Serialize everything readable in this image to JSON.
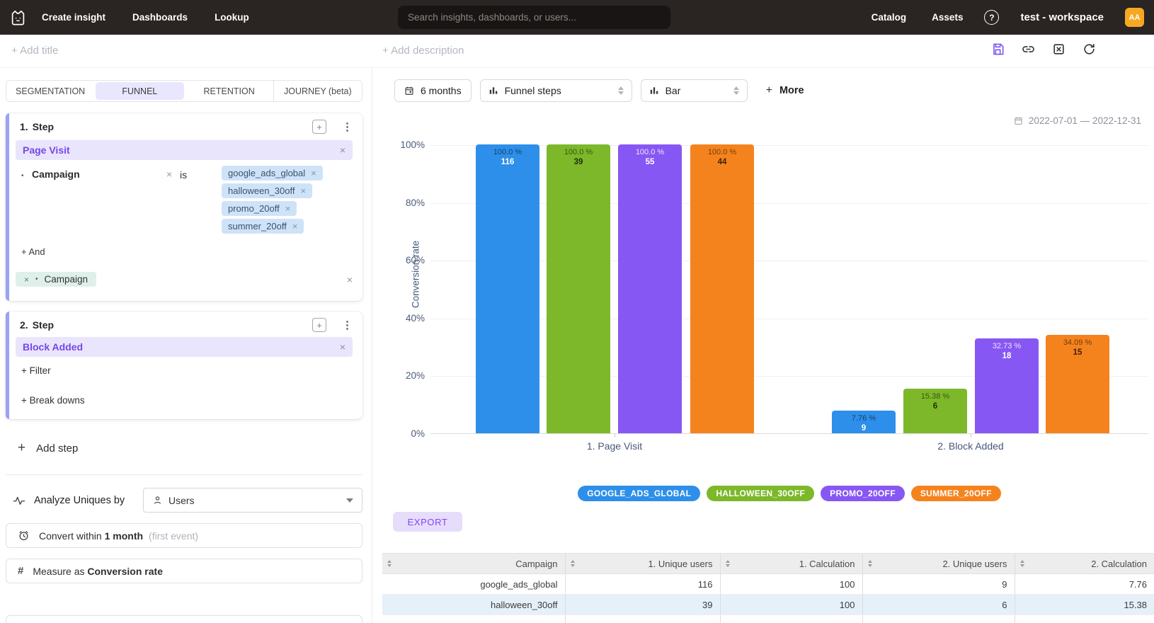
{
  "navbar": {
    "menu": [
      "Create insight",
      "Dashboards",
      "Lookup"
    ],
    "search_placeholder": "Search insights, dashboards, or users...",
    "right_menu": [
      "Catalog",
      "Assets"
    ],
    "help_label": "?",
    "workspace_name": "test - workspace",
    "avatar_initials": "AA"
  },
  "toolbar": {
    "add_title_placeholder": "+ Add title",
    "add_description_placeholder": "+ Add description"
  },
  "tabs": {
    "labels": [
      "SEGMENTATION",
      "FUNNEL",
      "RETENTION",
      "JOURNEY (beta)"
    ],
    "active": "FUNNEL"
  },
  "funnel": {
    "step1": {
      "number": "1.",
      "title": "Step",
      "event_name": "Page Visit",
      "filter": {
        "property": "Campaign",
        "operator": "is",
        "values": [
          "google_ads_global",
          "halloween_30off",
          "promo_20off",
          "summer_20off"
        ]
      },
      "and_label": "+ And",
      "second_filter_property": "Campaign"
    },
    "step2": {
      "number": "2.",
      "title": "Step",
      "event_name": "Block Added",
      "add_filter_label": "+ Filter",
      "add_breakdown_label": "+ Break downs"
    },
    "add_step_label": "Add step",
    "analyze_label": "Analyze Uniques by",
    "analyze_value": "Users",
    "convert_prefix": "Convert within",
    "convert_value": "1 month",
    "convert_hint": "(first event)",
    "measure_prefix": "Measure as",
    "measure_value": "Conversion rate"
  },
  "chart_controls": {
    "range_button": "6 months",
    "display_select": "Funnel steps",
    "type_select": "Bar",
    "more_button": "More",
    "date_range": "2022-07-01 — 2022-12-31",
    "export_button": "EXPORT"
  },
  "chart_data": {
    "type": "bar",
    "ylabel": "Conversion rate",
    "ylim": [
      0,
      100
    ],
    "ytick_labels": [
      "0%",
      "20%",
      "40%",
      "60%",
      "80%",
      "100%"
    ],
    "grid": true,
    "legend_position": "bottom",
    "categories": [
      "1. Page Visit",
      "2. Block Added"
    ],
    "series": [
      {
        "name": "GOOGLE_ADS_GLOBAL",
        "color": "#2d8fe9",
        "values": [
          100.0,
          7.76
        ],
        "value_labels": [
          "100.0 %",
          "7.76 %"
        ],
        "counts": [
          116,
          9
        ]
      },
      {
        "name": "HALLOWEEN_30OFF",
        "color": "#7cb82a",
        "values": [
          100.0,
          15.38
        ],
        "value_labels": [
          "100.0 %",
          "15.38 %"
        ],
        "counts": [
          39,
          6
        ]
      },
      {
        "name": "PROMO_20OFF",
        "color": "#8757f3",
        "values": [
          100.0,
          32.73
        ],
        "value_labels": [
          "100.0 %",
          "32.73 %"
        ],
        "counts": [
          55,
          18
        ]
      },
      {
        "name": "SUMMER_20OFF",
        "color": "#f5831d",
        "values": [
          100.0,
          34.09
        ],
        "value_labels": [
          "100.0 %",
          "34.09 %"
        ],
        "counts": [
          44,
          15
        ]
      }
    ]
  },
  "table": {
    "columns": [
      "Campaign",
      "1. Unique users",
      "1. Calculation",
      "2. Unique users",
      "2. Calculation"
    ],
    "rows": [
      [
        "google_ads_global",
        "116",
        "100",
        "9",
        "7.76"
      ],
      [
        "halloween_30off",
        "39",
        "100",
        "6",
        "15.38"
      ]
    ]
  }
}
